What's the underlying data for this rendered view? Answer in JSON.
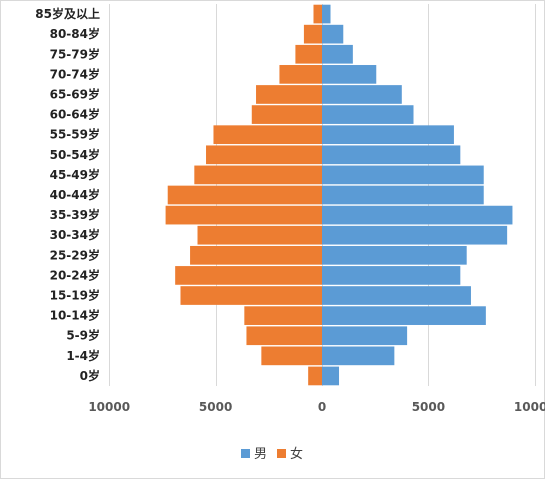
{
  "chart_data": {
    "type": "bar",
    "orientation": "horizontal",
    "categories": [
      "0岁",
      "1-4岁",
      "5-9岁",
      "10-14岁",
      "15-19岁",
      "20-24岁",
      "25-29岁",
      "30-34岁",
      "35-39岁",
      "40-44岁",
      "45-49岁",
      "50-54岁",
      "55-59岁",
      "60-64岁",
      "65-69岁",
      "70-74岁",
      "75-79岁",
      "80-84岁",
      "85岁及以上"
    ],
    "series": [
      {
        "name": "男",
        "color": "#5b9bd5",
        "values": [
          800,
          3400,
          4000,
          7700,
          7000,
          6500,
          6800,
          8700,
          8950,
          7600,
          7600,
          6500,
          6200,
          4300,
          3750,
          2550,
          1450,
          1000,
          400
        ]
      },
      {
        "name": "女",
        "color": "#ed7d31",
        "values": [
          -650,
          -2850,
          -3550,
          -3650,
          -6650,
          -6900,
          -6200,
          -5850,
          -7350,
          -7250,
          -6000,
          -5450,
          -5100,
          -3300,
          -3100,
          -2000,
          -1250,
          -850,
          -400
        ]
      }
    ],
    "x_ticks": [
      "10000",
      "5000",
      "0",
      "5000",
      "10000"
    ],
    "x_tick_values": [
      -10000,
      -5000,
      0,
      5000,
      10000
    ],
    "xlim": [
      -10000,
      10000
    ],
    "grid": "vertical",
    "legend": "bottom-center"
  }
}
